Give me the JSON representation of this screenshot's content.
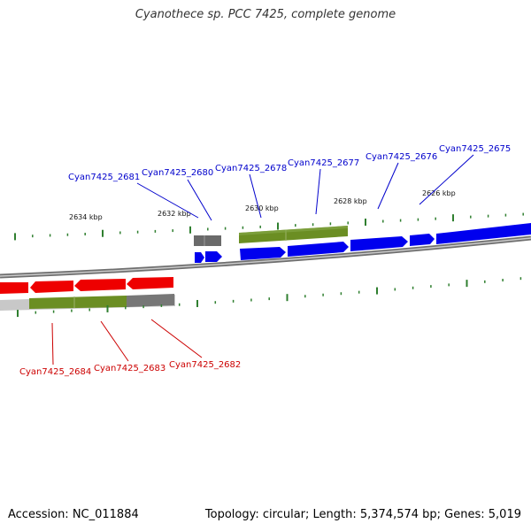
{
  "title": "Cyanothece sp. PCC 7425, complete genome",
  "footer": {
    "accession": "Accession: NC_011884",
    "summary": "Topology: circular; Length: 5,374,574 bp; Genes: 5,019"
  },
  "colors": {
    "forward_cds": "#0000ee",
    "reverse_cds": "#ee0000",
    "gene": "#6b8e23",
    "other_feature": "#707070",
    "backbone": "#7f7f7f",
    "tick": "#2f7f2f",
    "forward_label": "#0000cc",
    "reverse_label": "#cc0000"
  },
  "scale_labels": [
    "2634 kbp",
    "2632 kbp",
    "2630 kbp",
    "2628 kbp",
    "2626 kbp"
  ],
  "forward_labels": [
    "Cyan7425_2681",
    "Cyan7425_2680",
    "Cyan7425_2678",
    "Cyan7425_2677",
    "Cyan7425_2676",
    "Cyan7425_2675"
  ],
  "reverse_labels": [
    "Cyan7425_2684",
    "Cyan7425_2683",
    "Cyan7425_2682"
  ]
}
